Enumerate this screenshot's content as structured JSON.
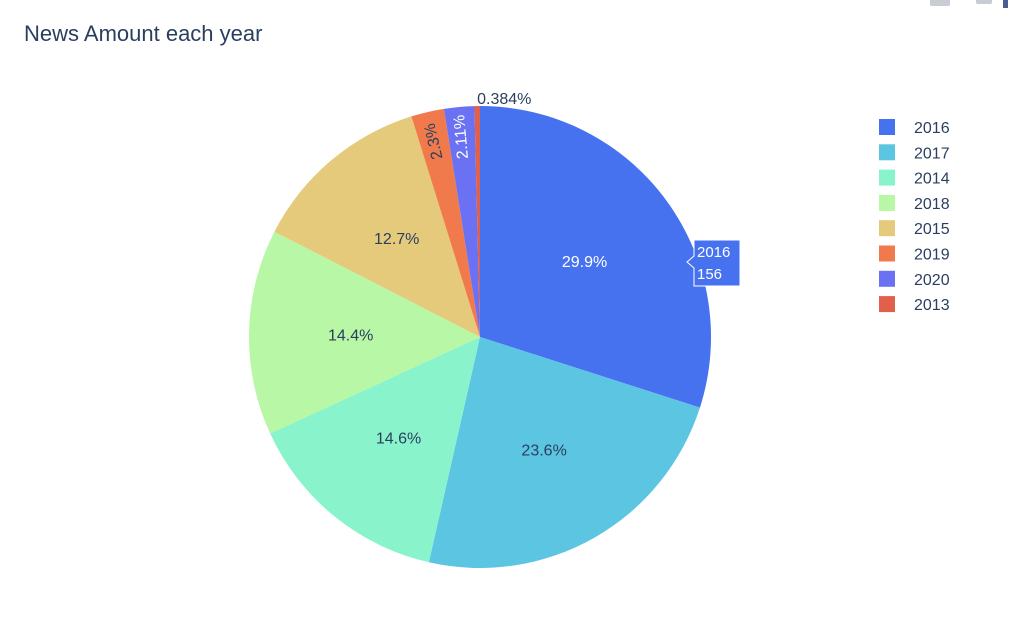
{
  "chart_data": {
    "type": "pie",
    "title": "News Amount each year",
    "slices": [
      {
        "label": "2016",
        "value": 156,
        "percent_text": "29.9%",
        "color": "#4672f0"
      },
      {
        "label": "2017",
        "value": 123,
        "percent_text": "23.6%",
        "color": "#5bc5e2"
      },
      {
        "label": "2014",
        "value": 76,
        "percent_text": "14.6%",
        "color": "#89f4cc"
      },
      {
        "label": "2018",
        "value": 75,
        "percent_text": "14.4%",
        "color": "#b7f7a6"
      },
      {
        "label": "2015",
        "value": 66,
        "percent_text": "12.7%",
        "color": "#e6ca7b"
      },
      {
        "label": "2019",
        "value": 12,
        "percent_text": "2.3%",
        "color": "#f07a4c"
      },
      {
        "label": "2020",
        "value": 11,
        "percent_text": "2.11%",
        "color": "#6a72f3"
      },
      {
        "label": "2013",
        "value": 2,
        "percent_text": "0.384%",
        "color": "#e0604a"
      }
    ],
    "legend": {
      "position": "top-right",
      "order": [
        "2016",
        "2017",
        "2014",
        "2018",
        "2015",
        "2019",
        "2020",
        "2013"
      ]
    },
    "hover": {
      "label": "2016",
      "value": "156"
    }
  }
}
